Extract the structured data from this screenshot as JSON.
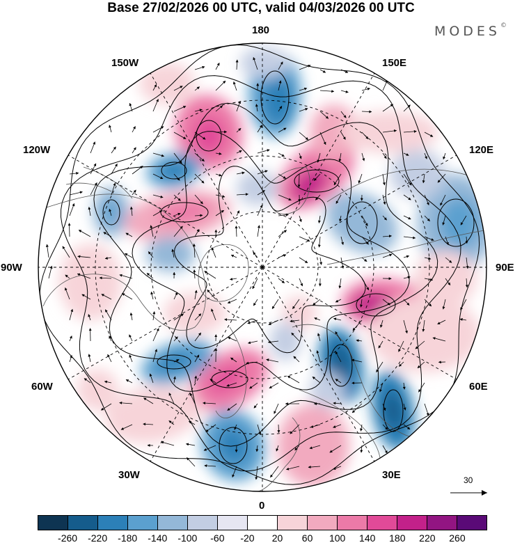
{
  "header": {
    "title": "Base 27/02/2026 00 UTC, valid 04/03/2026 00 UTC",
    "brand": "MODES",
    "brand_mark": "©"
  },
  "map": {
    "projection": "north-polar-stereographic",
    "longitude_labels": {
      "top": "180",
      "top_left": "150W",
      "top_right": "150E",
      "upper_left": "120W",
      "upper_right": "120E",
      "left": "90W",
      "right": "90E",
      "lower_left": "60W",
      "lower_right": "60E",
      "bottom_left": "30W",
      "bottom_right": "30E",
      "bottom": "0"
    },
    "wind_scale_label": "30"
  },
  "colorbar": {
    "colors": [
      "#0e3452",
      "#155c8c",
      "#2c80b8",
      "#5ba0cf",
      "#94b8d8",
      "#c3cee3",
      "#e6e6f2",
      "#ffffff",
      "#f7d4d9",
      "#f2aabf",
      "#ec7aa8",
      "#e14a98",
      "#c3218a",
      "#921582",
      "#5a0a77"
    ],
    "ticks": [
      "-260",
      "-220",
      "-180",
      "-140",
      "-100",
      "-60",
      "-20",
      "20",
      "60",
      "100",
      "140",
      "180",
      "220",
      "260"
    ]
  }
}
